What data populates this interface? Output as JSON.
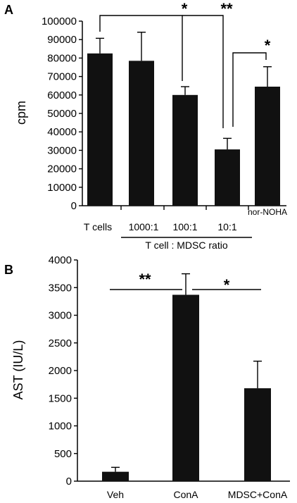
{
  "chart_data": [
    {
      "panel_label": "A",
      "type": "bar",
      "ylabel": "cpm",
      "xlabel": "T cell : MDSC ratio",
      "ylim": [
        0,
        100000
      ],
      "yticks": [
        0,
        10000,
        20000,
        30000,
        40000,
        50000,
        60000,
        70000,
        80000,
        90000,
        100000
      ],
      "categories": [
        "T cells",
        "1000:1",
        "100:1",
        "10:1",
        "nor-NOHA"
      ],
      "values": [
        82500,
        78500,
        60000,
        30500,
        64500
      ],
      "errors": [
        8200,
        15500,
        4500,
        6000,
        10800
      ],
      "bar_color": "#111111",
      "significance": [
        {
          "from": 0,
          "to": 2,
          "label": "*"
        },
        {
          "from": 0,
          "to": 3,
          "label": "**"
        },
        {
          "from": 3,
          "to": 4,
          "label": "*"
        }
      ]
    },
    {
      "panel_label": "B",
      "type": "bar",
      "ylabel": "AST (IU/L)",
      "xlabel": "",
      "ylim": [
        0,
        4000
      ],
      "yticks": [
        0,
        500,
        1000,
        1500,
        2000,
        2500,
        3000,
        3500,
        4000
      ],
      "categories": [
        "Veh",
        "ConA",
        "MDSC+ConA"
      ],
      "values": [
        170,
        3370,
        1680
      ],
      "errors": [
        80,
        380,
        490
      ],
      "bar_color": "#111111",
      "significance": [
        {
          "from": 0,
          "to": 1,
          "label": "**"
        },
        {
          "from": 1,
          "to": 2,
          "label": "*"
        }
      ]
    }
  ]
}
